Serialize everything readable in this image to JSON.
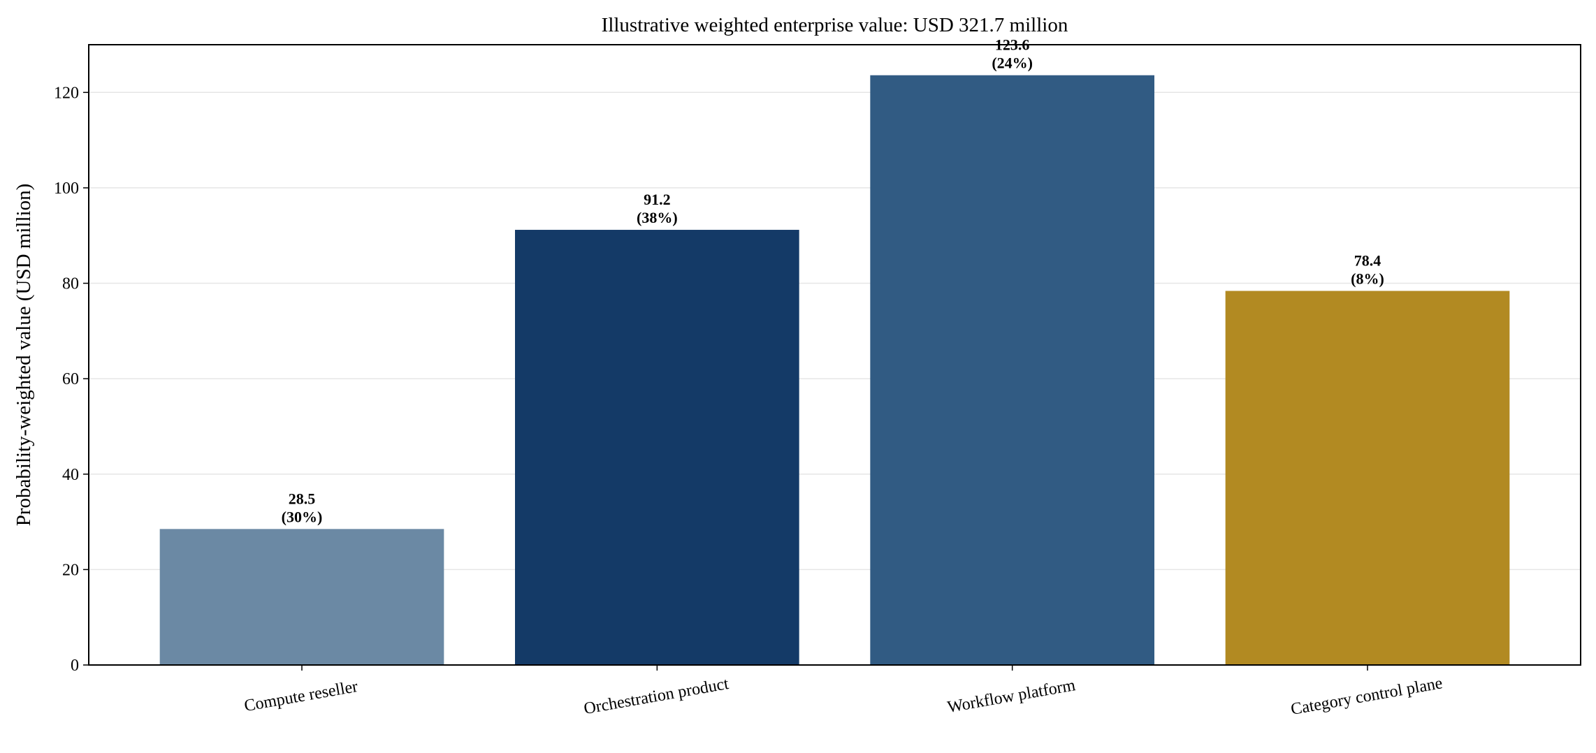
{
  "chart_data": {
    "type": "bar",
    "title": "Illustrative weighted enterprise value: USD 321.7 million",
    "xlabel": "",
    "ylabel": "Probability-weighted value (USD million)",
    "categories": [
      "Compute reseller",
      "Orchestration product",
      "Workflow platform",
      "Category control plane"
    ],
    "values": [
      28.5,
      91.2,
      123.6,
      78.4
    ],
    "data_labels": [
      [
        "28.5",
        "(30%)"
      ],
      [
        "91.2",
        "(38%)"
      ],
      [
        "123.6",
        "(24%)"
      ],
      [
        "78.4",
        "(8%)"
      ]
    ],
    "colors": [
      "#6b89a4",
      "#143a67",
      "#315b83",
      "#b28a22"
    ],
    "ylim": [
      0,
      130
    ],
    "yticks": [
      0,
      20,
      40,
      60,
      80,
      100,
      120
    ],
    "grid": "horizontal",
    "legend": "none"
  }
}
